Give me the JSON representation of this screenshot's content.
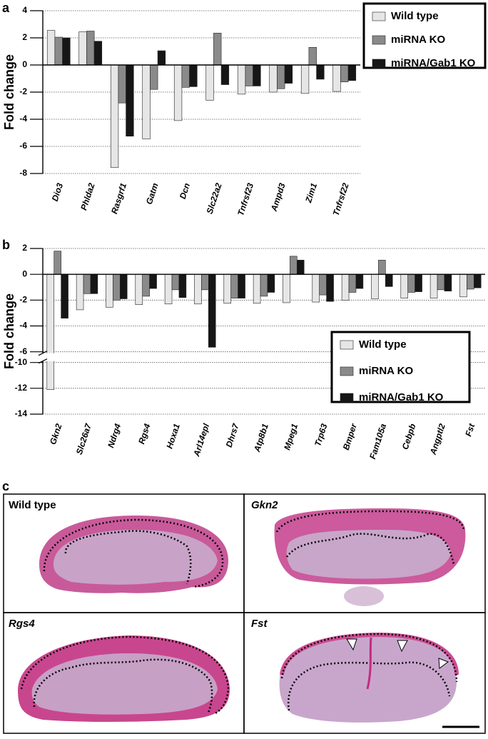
{
  "chart_data": [
    {
      "type": "bar",
      "panel_label": "a",
      "ylabel": "Fold change",
      "categories": [
        "Dio3",
        "Phlda2",
        "Rasgrf1",
        "Gatm",
        "Dcn",
        "Slc22a2",
        "Tnfrsf23",
        "Ampd3",
        "Zim1",
        "Tnfrsf22"
      ],
      "series": [
        {
          "name": "Wild type",
          "color": "#e6e6e6",
          "values": [
            2.55,
            2.45,
            -7.55,
            -5.45,
            -4.1,
            -2.6,
            -2.15,
            -2.0,
            -2.1,
            -1.95
          ]
        },
        {
          "name": "miRNA KO",
          "color": "#8a8a8a",
          "values": [
            2.05,
            2.5,
            -2.8,
            -1.8,
            -1.65,
            2.35,
            -1.55,
            -1.75,
            1.3,
            -1.25
          ]
        },
        {
          "name": "miRNA/Gab1 KO",
          "color": "#161616",
          "values": [
            2.0,
            1.75,
            -5.25,
            1.05,
            -1.6,
            -1.45,
            -1.55,
            -1.35,
            -1.05,
            -1.15
          ]
        }
      ],
      "ylim": [
        -8,
        4
      ],
      "yticks": [
        -8,
        -6,
        -4,
        -2,
        0,
        2,
        4
      ],
      "grid": true,
      "legend": "upper right"
    },
    {
      "type": "bar",
      "panel_label": "b",
      "ylabel": "Fold change",
      "categories": [
        "Gkn2",
        "Slc26a7",
        "Ndrg4",
        "Rgs4",
        "Hoxa1",
        "Arl14epl",
        "Dhrs7",
        "Atp8b1",
        "Mpeg1",
        "Trp63",
        "Bmper",
        "Fam105a",
        "Cebpb",
        "Angptl2",
        "Fst"
      ],
      "series": [
        {
          "name": "Wild type",
          "color": "#e6e6e6",
          "values": [
            -12.1,
            -2.75,
            -2.55,
            -2.35,
            -2.3,
            -2.3,
            -2.25,
            -2.25,
            -2.2,
            -2.15,
            -2.0,
            -1.9,
            -1.85,
            -1.85,
            -1.75
          ]
        },
        {
          "name": "miRNA KO",
          "color": "#8a8a8a",
          "values": [
            1.8,
            -1.5,
            -2.0,
            -1.7,
            -1.2,
            -1.2,
            -1.85,
            -1.7,
            1.4,
            -1.6,
            -1.4,
            1.1,
            -1.4,
            -1.2,
            -1.15
          ]
        },
        {
          "name": "miRNA/Gab1 KO",
          "color": "#161616",
          "values": [
            -3.4,
            -1.5,
            -1.9,
            -1.1,
            -1.8,
            -5.65,
            -1.85,
            -1.4,
            1.1,
            -2.1,
            -1.1,
            -0.95,
            -1.35,
            -1.3,
            -1.05
          ]
        }
      ],
      "ylim": [
        -14,
        2
      ],
      "ybreak": [
        -10,
        -6
      ],
      "yticks": [
        -14,
        -12,
        -10,
        -6,
        -4,
        -2,
        0,
        2
      ],
      "grid": true,
      "legend": "lower right"
    }
  ],
  "panel_c": {
    "label": "c",
    "images": [
      "Wild type",
      "Gkn2",
      "Rgs4",
      "Fst"
    ]
  }
}
